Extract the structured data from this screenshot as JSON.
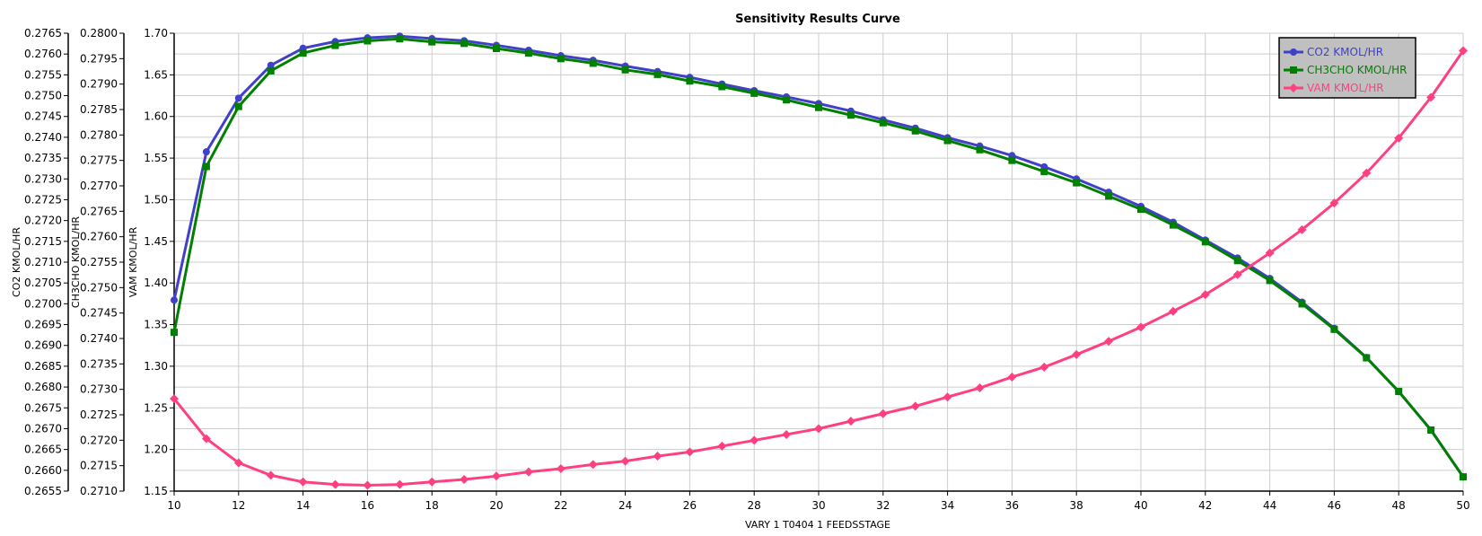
{
  "chart_data": {
    "type": "line",
    "title": "Sensitivity Results Curve",
    "xlabel": "VARY   1 T0404 1 FEEDSSTAGE",
    "xlim": [
      10,
      50
    ],
    "xticks": [
      "10",
      "12",
      "14",
      "16",
      "18",
      "20",
      "22",
      "24",
      "26",
      "28",
      "30",
      "32",
      "34",
      "36",
      "38",
      "40",
      "42",
      "44",
      "46",
      "48",
      "50"
    ],
    "grid": true,
    "legend_position": "top-right",
    "x": [
      10,
      11,
      12,
      13,
      14,
      15,
      16,
      17,
      18,
      19,
      20,
      21,
      22,
      23,
      24,
      25,
      26,
      27,
      28,
      29,
      30,
      31,
      32,
      33,
      34,
      35,
      36,
      37,
      38,
      39,
      40,
      41,
      42,
      43,
      44,
      45,
      46,
      47,
      48,
      49,
      50
    ],
    "y_axes": [
      {
        "id": "co2",
        "label": "CO2 KMOL/HR",
        "ylim": [
          0.2655,
          0.2765
        ],
        "step": 0.0005,
        "decimals": 4
      },
      {
        "id": "ch3cho",
        "label": "CH3CHO KMOL/HR",
        "ylim": [
          0.271,
          0.28
        ],
        "step": 0.0005,
        "decimals": 4
      },
      {
        "id": "vam",
        "label": "VAM KMOL/HR",
        "ylim": [
          1.15,
          1.7
        ],
        "step": 0.05,
        "decimals": 2
      }
    ],
    "series": [
      {
        "name": "CO2 KMOL/HR",
        "axis": "co2",
        "color": "#4040c8",
        "marker": "circle",
        "values": [
          0.27009,
          0.27365,
          0.27494,
          0.27573,
          0.27614,
          0.2763,
          0.27639,
          0.27643,
          0.27637,
          0.27632,
          0.27621,
          0.27609,
          0.27596,
          0.27585,
          0.27571,
          0.27558,
          0.27544,
          0.27528,
          0.27512,
          0.27497,
          0.27481,
          0.27463,
          0.27442,
          0.27422,
          0.27399,
          0.27379,
          0.27356,
          0.27329,
          0.273,
          0.27268,
          0.27234,
          0.27196,
          0.27153,
          0.2711,
          0.27061,
          0.27004,
          0.26941,
          0.26871,
          0.26789,
          0.26697,
          0.26584
        ]
      },
      {
        "name": "CH3CHO KMOL/HR",
        "axis": "ch3cho",
        "color": "#008000",
        "marker": "square",
        "values": [
          0.27412,
          0.27738,
          0.27856,
          0.27926,
          0.27961,
          0.27976,
          0.27985,
          0.27989,
          0.27983,
          0.2798,
          0.2797,
          0.27961,
          0.2795,
          0.27941,
          0.27928,
          0.27919,
          0.27906,
          0.27895,
          0.27882,
          0.27869,
          0.27854,
          0.27839,
          0.27824,
          0.27808,
          0.27789,
          0.27771,
          0.2775,
          0.27728,
          0.27706,
          0.2768,
          0.27654,
          0.27623,
          0.2759,
          0.27553,
          0.27514,
          0.27468,
          0.27418,
          0.27362,
          0.27296,
          0.2722,
          0.27128
        ]
      },
      {
        "name": "VAM KMOL/HR",
        "axis": "vam",
        "color": "#ff4080",
        "marker": "diamond",
        "values": [
          1.261,
          1.213,
          1.184,
          1.169,
          1.161,
          1.158,
          1.157,
          1.158,
          1.161,
          1.164,
          1.168,
          1.173,
          1.177,
          1.182,
          1.186,
          1.192,
          1.197,
          1.204,
          1.211,
          1.218,
          1.225,
          1.234,
          1.243,
          1.252,
          1.263,
          1.274,
          1.287,
          1.299,
          1.314,
          1.33,
          1.347,
          1.366,
          1.386,
          1.41,
          1.436,
          1.464,
          1.496,
          1.532,
          1.574,
          1.623,
          1.679
        ]
      }
    ]
  }
}
